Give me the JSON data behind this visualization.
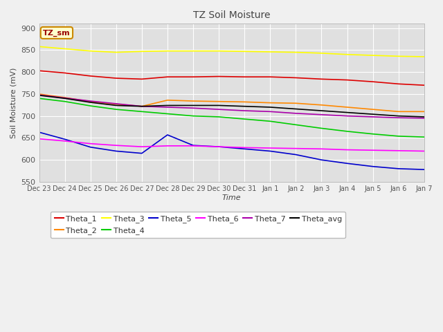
{
  "title": "TZ Soil Moisture",
  "xlabel": "Time",
  "ylabel": "Soil Moisture (mV)",
  "ylim": [
    550,
    910
  ],
  "yticks": [
    550,
    600,
    650,
    700,
    750,
    800,
    850,
    900
  ],
  "xtick_labels": [
    "Dec 23",
    "Dec 24",
    "Dec 25",
    "Dec 26",
    "Dec 27",
    "Dec 28",
    "Dec 29",
    "Dec 30",
    "Dec 31",
    "Jan 1",
    "Jan 2",
    "Jan 3",
    "Jan 4",
    "Jan 5",
    "Jan 6",
    "Jan 7"
  ],
  "watermark_text": "TZ_sm",
  "fig_facecolor": "#f0f0f0",
  "ax_facecolor": "#e0e0e0",
  "grid_color": "#ffffff",
  "series": {
    "Theta_1": {
      "color": "#dd0000",
      "points": [
        [
          0,
          803
        ],
        [
          1,
          798
        ],
        [
          2,
          791
        ],
        [
          3,
          786
        ],
        [
          4,
          784
        ],
        [
          5,
          789
        ],
        [
          6,
          789
        ],
        [
          7,
          790
        ],
        [
          8,
          789
        ],
        [
          9,
          789
        ],
        [
          10,
          787
        ],
        [
          11,
          784
        ],
        [
          12,
          782
        ],
        [
          13,
          778
        ],
        [
          14,
          773
        ],
        [
          15,
          770
        ]
      ]
    },
    "Theta_2": {
      "color": "#ff8800",
      "points": [
        [
          0,
          750
        ],
        [
          1,
          742
        ],
        [
          2,
          733
        ],
        [
          3,
          727
        ],
        [
          4,
          722
        ],
        [
          5,
          736
        ],
        [
          6,
          734
        ],
        [
          7,
          733
        ],
        [
          8,
          732
        ],
        [
          9,
          730
        ],
        [
          10,
          729
        ],
        [
          11,
          725
        ],
        [
          12,
          720
        ],
        [
          13,
          715
        ],
        [
          14,
          710
        ],
        [
          15,
          710
        ]
      ]
    },
    "Theta_3": {
      "color": "#ffff00",
      "points": [
        [
          0,
          858
        ],
        [
          1,
          853
        ],
        [
          2,
          848
        ],
        [
          3,
          845
        ],
        [
          4,
          847
        ],
        [
          5,
          848
        ],
        [
          6,
          848
        ],
        [
          7,
          848
        ],
        [
          8,
          847
        ],
        [
          9,
          846
        ],
        [
          10,
          845
        ],
        [
          11,
          843
        ],
        [
          12,
          840
        ],
        [
          13,
          838
        ],
        [
          14,
          836
        ],
        [
          15,
          835
        ]
      ]
    },
    "Theta_4": {
      "color": "#00cc00",
      "points": [
        [
          0,
          740
        ],
        [
          1,
          733
        ],
        [
          2,
          723
        ],
        [
          3,
          715
        ],
        [
          4,
          710
        ],
        [
          5,
          705
        ],
        [
          6,
          700
        ],
        [
          7,
          698
        ],
        [
          8,
          693
        ],
        [
          9,
          688
        ],
        [
          10,
          680
        ],
        [
          11,
          672
        ],
        [
          12,
          665
        ],
        [
          13,
          659
        ],
        [
          14,
          654
        ],
        [
          15,
          652
        ]
      ]
    },
    "Theta_5": {
      "color": "#0000cc",
      "points": [
        [
          0,
          663
        ],
        [
          1,
          647
        ],
        [
          2,
          629
        ],
        [
          3,
          620
        ],
        [
          4,
          615
        ],
        [
          5,
          657
        ],
        [
          6,
          633
        ],
        [
          7,
          630
        ],
        [
          8,
          625
        ],
        [
          9,
          620
        ],
        [
          10,
          612
        ],
        [
          11,
          600
        ],
        [
          12,
          592
        ],
        [
          13,
          585
        ],
        [
          14,
          580
        ],
        [
          15,
          578
        ]
      ]
    },
    "Theta_6": {
      "color": "#ff00ff",
      "points": [
        [
          0,
          648
        ],
        [
          1,
          643
        ],
        [
          2,
          637
        ],
        [
          3,
          633
        ],
        [
          4,
          630
        ],
        [
          5,
          632
        ],
        [
          6,
          632
        ],
        [
          7,
          630
        ],
        [
          8,
          628
        ],
        [
          9,
          627
        ],
        [
          10,
          626
        ],
        [
          11,
          625
        ],
        [
          12,
          623
        ],
        [
          13,
          622
        ],
        [
          14,
          621
        ],
        [
          15,
          620
        ]
      ]
    },
    "Theta_7": {
      "color": "#aa00aa",
      "points": [
        [
          0,
          748
        ],
        [
          1,
          741
        ],
        [
          2,
          734
        ],
        [
          3,
          728
        ],
        [
          4,
          722
        ],
        [
          5,
          720
        ],
        [
          6,
          718
        ],
        [
          7,
          715
        ],
        [
          8,
          712
        ],
        [
          9,
          710
        ],
        [
          10,
          706
        ],
        [
          11,
          703
        ],
        [
          12,
          700
        ],
        [
          13,
          698
        ],
        [
          14,
          696
        ],
        [
          15,
          695
        ]
      ]
    },
    "Theta_avg": {
      "color": "#000000",
      "points": [
        [
          0,
          747
        ],
        [
          1,
          740
        ],
        [
          2,
          731
        ],
        [
          3,
          724
        ],
        [
          4,
          722
        ],
        [
          5,
          724
        ],
        [
          6,
          724
        ],
        [
          7,
          724
        ],
        [
          8,
          722
        ],
        [
          9,
          720
        ],
        [
          10,
          716
        ],
        [
          11,
          712
        ],
        [
          12,
          708
        ],
        [
          13,
          704
        ],
        [
          14,
          700
        ],
        [
          15,
          698
        ]
      ]
    }
  },
  "legend_row1": [
    "Theta_1",
    "Theta_2",
    "Theta_3",
    "Theta_4",
    "Theta_5",
    "Theta_6"
  ],
  "legend_row2": [
    "Theta_7",
    "Theta_avg"
  ]
}
